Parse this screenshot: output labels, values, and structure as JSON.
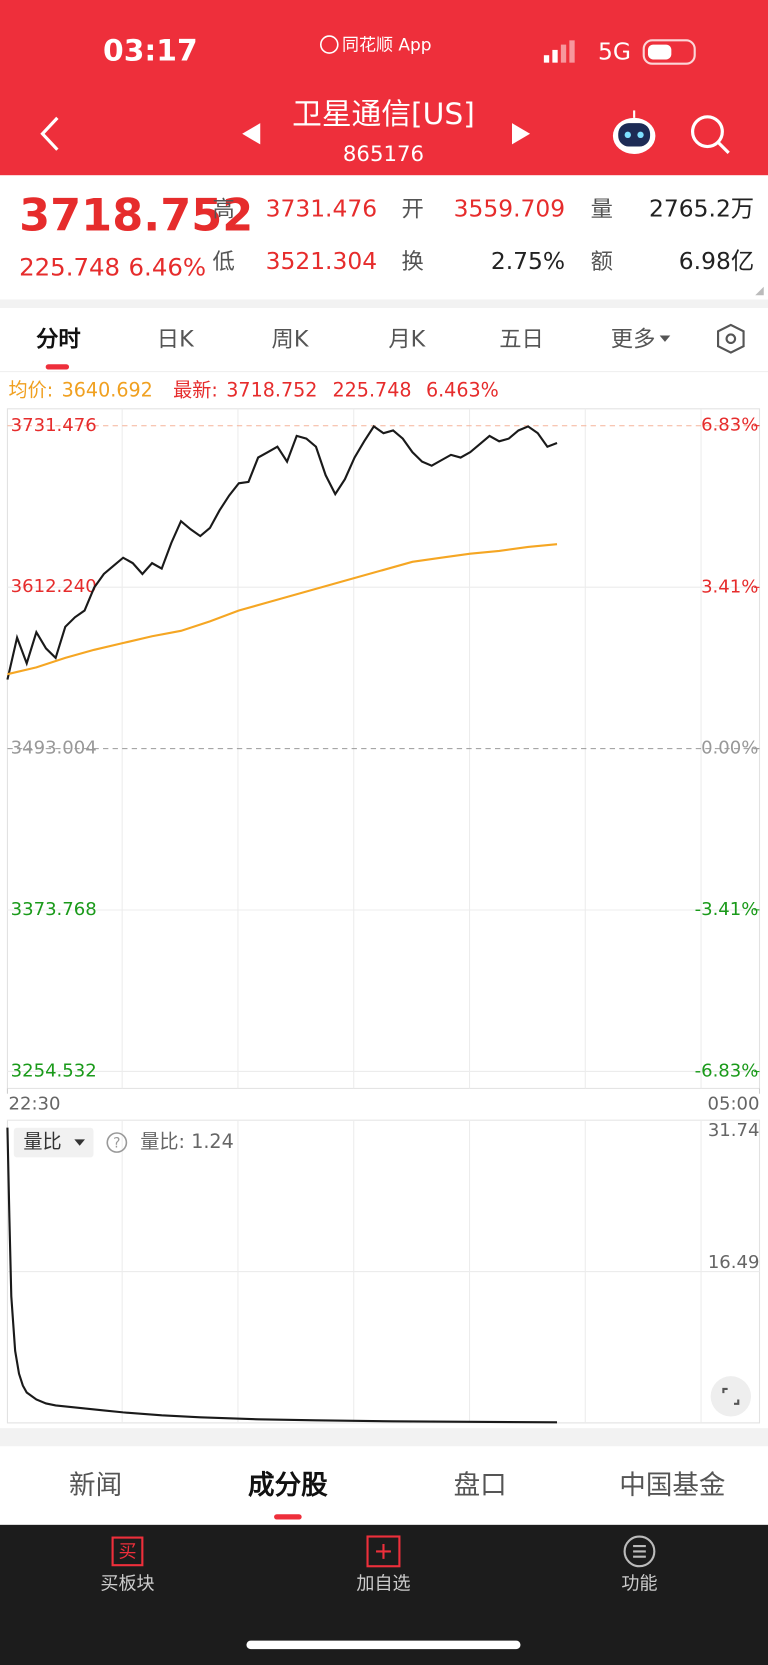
{
  "status": {
    "time": "03:17",
    "app": "同花顺 App",
    "network": "5G"
  },
  "header": {
    "title": "卫星通信[US]",
    "code": "865176"
  },
  "quote": {
    "price": "3718.752",
    "change": "225.748",
    "change_pct": "6.46%",
    "stats": [
      {
        "label": "高",
        "value": "3731.476",
        "color": "#e62c2c"
      },
      {
        "label": "开",
        "value": "3559.709",
        "color": "#e62c2c"
      },
      {
        "label": "量",
        "value": "2765.2万",
        "color": "#222222"
      },
      {
        "label": "低",
        "value": "3521.304",
        "color": "#e62c2c"
      },
      {
        "label": "换",
        "value": "2.75%",
        "color": "#222222"
      },
      {
        "label": "额",
        "value": "6.98亿",
        "color": "#222222"
      }
    ]
  },
  "tabs": [
    "分时",
    "日K",
    "周K",
    "月K",
    "五日",
    "更多"
  ],
  "info": {
    "avg_label": "均价:",
    "avg": "3640.692",
    "latest_label": "最新:",
    "latest": "3718.752",
    "change": "225.748",
    "change_pct": "6.463%"
  },
  "price_chart": {
    "xlim": [
      0,
      390
    ],
    "xticks": [
      {
        "value": 0,
        "label": "22:30"
      },
      {
        "value": 390,
        "label": "05:00"
      }
    ],
    "ylim": [
      3242.0,
      3744.0
    ],
    "yticks": [
      3731.476,
      {
        "value": 3612.24,
        "label": "3612.240"
      },
      3493.004,
      3373.768,
      3254.532
    ],
    "y2lim": [
      -7.186,
      7.186
    ],
    "y2ticks": [
      {
        "value": 6.83,
        "label": "6.83%"
      },
      {
        "value": 3.41,
        "label": "3.41%"
      },
      {
        "value": 0,
        "label": "0.00%"
      },
      {
        "value": -3.41,
        "label": "-3.41%"
      },
      {
        "value": -6.83,
        "label": "-6.83%"
      }
    ],
    "series": [
      {
        "color": "#1a1a1a",
        "x": [
          0,
          5,
          10,
          15,
          20,
          25,
          30,
          35,
          40,
          45,
          50,
          55,
          60,
          65,
          70,
          75,
          80,
          85,
          90,
          95,
          100,
          105,
          110,
          115,
          120,
          125,
          130,
          135,
          140,
          145,
          150,
          155,
          160,
          165,
          170,
          175,
          180,
          185,
          190,
          195,
          200,
          205,
          210,
          215,
          220,
          225,
          230,
          235,
          240,
          245,
          250,
          255,
          260,
          265,
          270,
          275,
          280,
          285
        ],
        "values": [
          3544,
          3575,
          3556,
          3579,
          3567,
          3560,
          3583,
          3590,
          3595,
          3612,
          3622,
          3628,
          3634,
          3630,
          3622,
          3630,
          3626,
          3645,
          3661,
          3655,
          3650,
          3656,
          3669,
          3680,
          3689,
          3690,
          3708,
          3712,
          3716,
          3705,
          3724,
          3722,
          3716,
          3695,
          3681,
          3692,
          3708,
          3720,
          3731,
          3726,
          3728,
          3722,
          3712,
          3705,
          3702,
          3706,
          3710,
          3708,
          3712,
          3718,
          3724,
          3720,
          3722,
          3728,
          3731,
          3726,
          3716,
          3718.75
        ]
      },
      {
        "color": "#f5a623",
        "x": [
          0,
          15,
          30,
          45,
          60,
          75,
          90,
          105,
          120,
          135,
          150,
          165,
          180,
          195,
          210,
          225,
          240,
          255,
          270,
          285
        ],
        "values": [
          3548,
          3553,
          3560,
          3566,
          3571,
          3576,
          3580,
          3587,
          3595,
          3601,
          3607,
          3613,
          3619,
          3625,
          3631,
          3634,
          3637,
          3639,
          3642,
          3644
        ]
      }
    ]
  },
  "volume_chart": {
    "selector": "量比",
    "label": "量比:",
    "value": "1.24",
    "xlim": [
      0,
      390
    ],
    "ylim": [
      1.24,
      31.74
    ],
    "yticks": [
      31.74,
      16.49
    ],
    "color": "#1a1a1a",
    "x": [
      0,
      1,
      2,
      4,
      6,
      8,
      10,
      15,
      20,
      25,
      30,
      40,
      50,
      60,
      80,
      100,
      130,
      160,
      200,
      240,
      285
    ],
    "values": [
      31.0,
      22,
      14,
      8.5,
      6.2,
      5,
      4.3,
      3.6,
      3.2,
      3.0,
      2.9,
      2.7,
      2.5,
      2.3,
      2.0,
      1.8,
      1.6,
      1.5,
      1.4,
      1.35,
      1.3
    ]
  },
  "bottom_tabs": [
    "新闻",
    "成分股",
    "盘口",
    "中国基金"
  ],
  "toolbar": [
    {
      "icon": "买",
      "label": "买板块"
    },
    {
      "label": "加自选"
    },
    {
      "label": "功能"
    }
  ]
}
